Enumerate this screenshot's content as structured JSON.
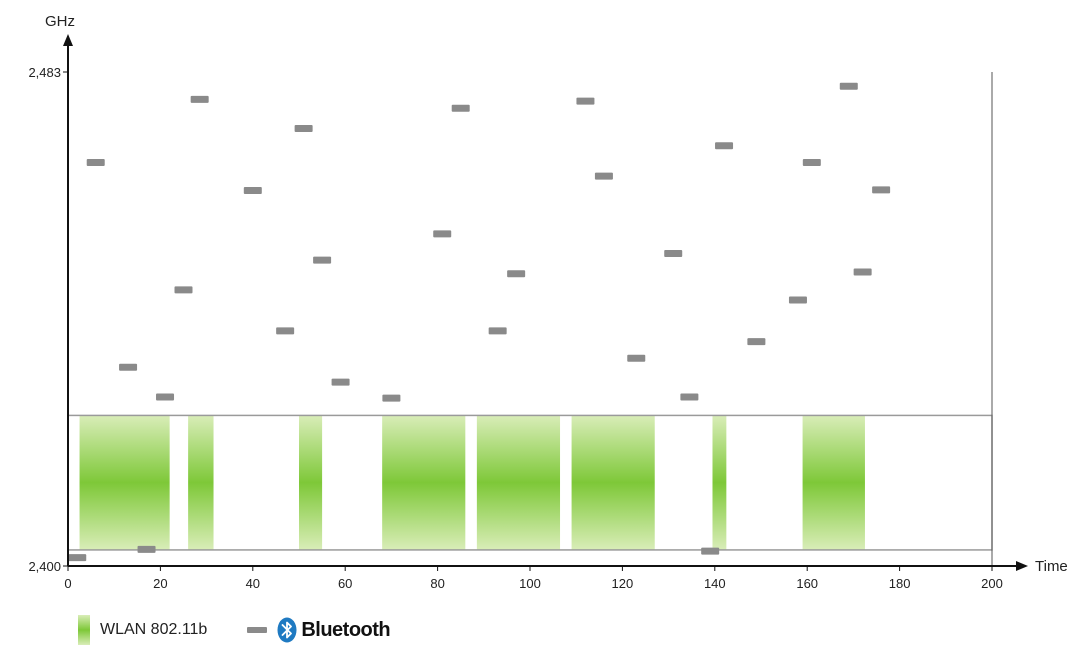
{
  "chart_data": {
    "type": "scatter",
    "ylabel": "GHz",
    "xlabel": "Time",
    "xlim": [
      0,
      200
    ],
    "ylim": [
      2400,
      2483
    ],
    "x_ticks": [
      0,
      20,
      40,
      60,
      80,
      100,
      120,
      140,
      160,
      180,
      200
    ],
    "y_tick_labels": [
      "2,483",
      "2,400"
    ],
    "wlan_band": [
      2425.3,
      2402.7
    ],
    "legend": {
      "wlan_label": "WLAN 802.11b",
      "bluetooth_label": "Bluetooth"
    },
    "wlan_bursts": [
      [
        2.5,
        22
      ],
      [
        26,
        31.5
      ],
      [
        50,
        55
      ],
      [
        68,
        86
      ],
      [
        88.5,
        106.5
      ],
      [
        109,
        127
      ],
      [
        139.5,
        142.5
      ],
      [
        159,
        172.5
      ]
    ],
    "bluetooth_hops": [
      {
        "t": 2,
        "f": 2401.4
      },
      {
        "t": 6,
        "f": 2467.8
      },
      {
        "t": 13,
        "f": 2433.4
      },
      {
        "t": 17,
        "f": 2402.8
      },
      {
        "t": 21,
        "f": 2428.4
      },
      {
        "t": 25,
        "f": 2446.4
      },
      {
        "t": 28.5,
        "f": 2478.4
      },
      {
        "t": 40,
        "f": 2463.1
      },
      {
        "t": 47,
        "f": 2439.5
      },
      {
        "t": 51,
        "f": 2473.5
      },
      {
        "t": 55,
        "f": 2451.4
      },
      {
        "t": 59,
        "f": 2430.9
      },
      {
        "t": 70,
        "f": 2428.2
      },
      {
        "t": 81,
        "f": 2455.8
      },
      {
        "t": 85,
        "f": 2476.9
      },
      {
        "t": 93,
        "f": 2439.5
      },
      {
        "t": 97,
        "f": 2449.1
      },
      {
        "t": 112,
        "f": 2478.1
      },
      {
        "t": 116,
        "f": 2465.5
      },
      {
        "t": 123,
        "f": 2434.9
      },
      {
        "t": 131,
        "f": 2452.5
      },
      {
        "t": 134.5,
        "f": 2428.4
      },
      {
        "t": 139,
        "f": 2402.5
      },
      {
        "t": 142,
        "f": 2470.6
      },
      {
        "t": 149,
        "f": 2437.7
      },
      {
        "t": 158,
        "f": 2444.7
      },
      {
        "t": 161,
        "f": 2467.8
      },
      {
        "t": 169,
        "f": 2480.6
      },
      {
        "t": 172,
        "f": 2449.4
      },
      {
        "t": 176,
        "f": 2463.2
      }
    ]
  }
}
